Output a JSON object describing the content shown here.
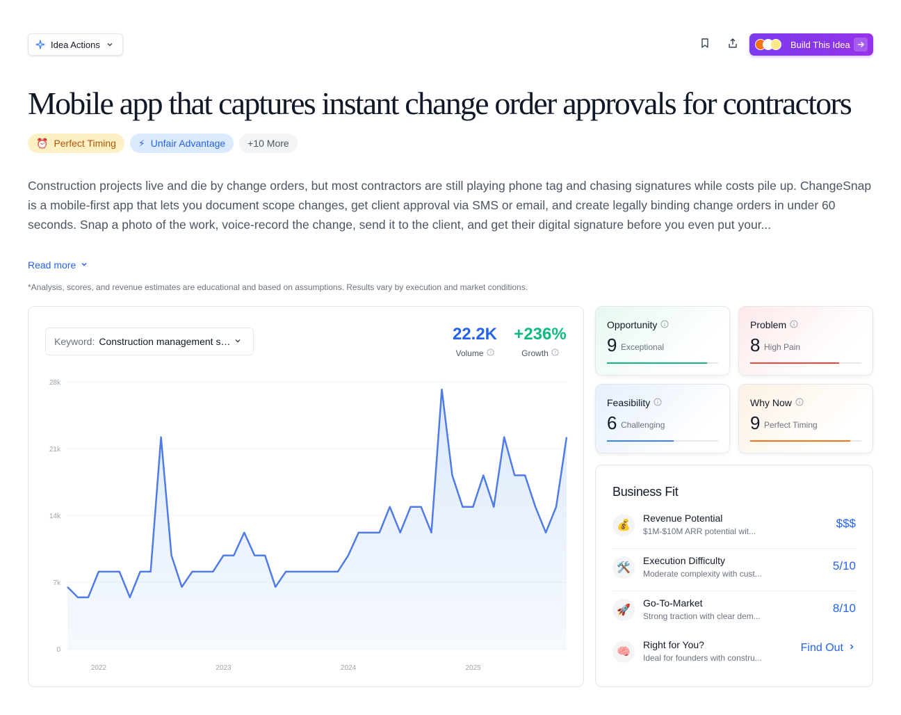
{
  "toolbar": {
    "idea_actions_label": "Idea Actions",
    "build_label": "Build This Idea"
  },
  "title": "Mobile app that captures instant change order approvals for contractors",
  "tags": [
    {
      "emoji": "⏰",
      "label": "Perfect Timing"
    },
    {
      "emoji": "⚡",
      "label": "Unfair Advantage"
    },
    {
      "label": "+10 More"
    }
  ],
  "description": "Construction projects live and die by change orders, but most contractors are still playing phone tag and chasing signatures while costs pile up. ChangeSnap is a mobile-first app that lets you document scope changes, get client approval via SMS or email, and create legally binding change orders in under 60 seconds. Snap a photo of the work, voice-record the change, send it to the client, and get their digital signature before you even put your...",
  "read_more": "Read more",
  "disclaimer": "*Analysis, scores, and revenue estimates are educational and based on assumptions. Results vary by execution and market conditions.",
  "keyword": {
    "label": "Keyword:",
    "value": "Construction management software"
  },
  "stats": {
    "volume": {
      "value": "22.2K",
      "label": "Volume"
    },
    "growth": {
      "value": "+236%",
      "label": "Growth"
    }
  },
  "chart_data": {
    "type": "area",
    "ylim": [
      0,
      28000
    ],
    "y_ticks": [
      0,
      7000,
      14000,
      21000,
      28000
    ],
    "y_tick_labels": [
      "0",
      "7k",
      "14k",
      "21k",
      "28k"
    ],
    "x_ticks": [
      {
        "label": "2022",
        "x": 2022
      },
      {
        "label": "2023",
        "x": 2023
      },
      {
        "label": "2024",
        "x": 2024
      },
      {
        "label": "2025",
        "x": 2025
      }
    ],
    "x_start": 2021.75,
    "x_step": 0.0833,
    "values": [
      6500,
      5400,
      5400,
      8100,
      8100,
      8100,
      5400,
      8100,
      8100,
      22200,
      9800,
      6500,
      8100,
      8100,
      8100,
      9800,
      9800,
      12200,
      9800,
      9800,
      6500,
      8100,
      8100,
      8100,
      8100,
      8100,
      8100,
      9800,
      12200,
      12200,
      12200,
      14900,
      12200,
      14900,
      14900,
      12200,
      27200,
      18200,
      14900,
      14900,
      18200,
      14900,
      22200,
      18200,
      18200,
      14900,
      12200,
      14900,
      22200
    ],
    "grid": true,
    "line_color": "#4f7be8",
    "fill_color": "#dce9fb"
  },
  "scores": {
    "opportunity": {
      "title": "Opportunity",
      "value": "9",
      "desc": "Exceptional",
      "level": 0.9,
      "color": "#10b981"
    },
    "problem": {
      "title": "Problem",
      "value": "8",
      "desc": "High Pain",
      "level": 0.8,
      "color": "#ef4444"
    },
    "feasibility": {
      "title": "Feasibility",
      "value": "6",
      "desc": "Challenging",
      "level": 0.6,
      "color": "#3b82f6"
    },
    "whynow": {
      "title": "Why Now",
      "value": "9",
      "desc": "Perfect Timing",
      "level": 0.9,
      "color": "#f97316"
    }
  },
  "business_fit": {
    "title": "Business Fit",
    "rows": [
      {
        "icon": "💰",
        "label": "Revenue Potential",
        "sub": "$1M-$10M ARR potential wit...",
        "value": "$$$"
      },
      {
        "icon": "🛠️",
        "label": "Execution Difficulty",
        "sub": "Moderate complexity with cust...",
        "value": "5/10"
      },
      {
        "icon": "🚀",
        "label": "Go-To-Market",
        "sub": "Strong traction with clear dem...",
        "value": "8/10"
      },
      {
        "icon": "🧠",
        "label": "Right for You?",
        "sub": "Ideal for founders with constru...",
        "value": "Find Out"
      }
    ]
  },
  "colors": {
    "accent": "#2563eb",
    "brand": "#7c3aed",
    "growth": "#10b981"
  }
}
